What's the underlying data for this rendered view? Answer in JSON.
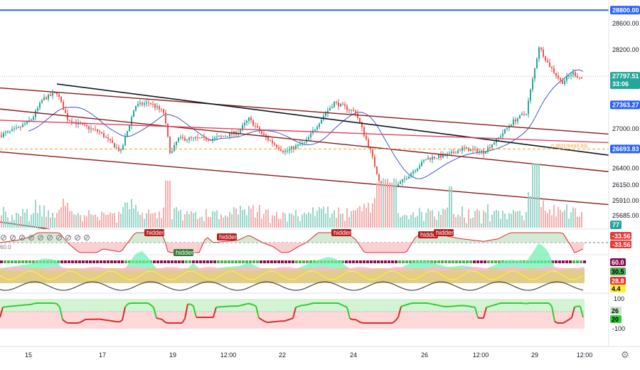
{
  "chart_data": {
    "type": "candlestick",
    "price_axis": {
      "ticks": [
        "28600.00",
        "28200.00",
        "27000.00",
        "26400.00",
        "26150.00",
        "25910.00",
        "25685.00"
      ],
      "ylim": [
        25500,
        28900
      ]
    },
    "date_axis": {
      "ticks": [
        "15",
        "17",
        "19",
        "12:00",
        "22",
        "24",
        "26",
        "12:00",
        "29",
        "12:00"
      ]
    },
    "price_tags": [
      {
        "name": "level-28800",
        "text": "28800.00",
        "price": 28800,
        "color": "#2962ff",
        "text_color": "#ffffff"
      },
      {
        "name": "last-price",
        "text": "27797.51",
        "subtext": "33:06",
        "price": 27797.51,
        "color": "#26a69a",
        "text_color": "#ffffff"
      },
      {
        "name": "channel-upper",
        "text": "27363.27",
        "price": 27363.27,
        "color": "#2962ff",
        "text_color": "#ffffff"
      },
      {
        "name": "fib-level",
        "text": "26693.83",
        "price": 26693.83,
        "color": "#2962ff",
        "text_color": "#ffffff"
      }
    ],
    "fib_label": "0.382(26693.83)",
    "volume_tag": "77",
    "osc1": {
      "tags": [
        "-33.56",
        "-33.56"
      ],
      "hidden_labels": [
        "hidden",
        "hidden",
        "hidden",
        "hidden",
        "hidden",
        "hidden"
      ]
    },
    "osc2": {
      "tags": [
        "60.0",
        "30.5",
        "28.8",
        "4.4"
      ],
      "left_label": "60.0"
    },
    "osc3": {
      "ticks": [
        "100",
        "-100"
      ],
      "tags": [
        "26",
        "20"
      ]
    },
    "lines": [
      {
        "name": "top-channel-line",
        "from": [
          0,
          27620
        ],
        "to": [
          856,
          26920
        ],
        "color": "#8b1a1a"
      },
      {
        "name": "channel-mid-line",
        "from": [
          0,
          27300
        ],
        "to": [
          856,
          26350
        ],
        "color": "#8b1a1a"
      },
      {
        "name": "channel-lower-line",
        "from": [
          0,
          26650
        ],
        "to": [
          856,
          25850
        ],
        "color": "#8b1a1a"
      },
      {
        "name": "black-trend-line",
        "from": [
          80,
          27680
        ],
        "to": [
          856,
          26600
        ],
        "color": "#131722"
      },
      {
        "name": "red-trend-line",
        "from": [
          0,
          27130
        ],
        "to": [
          856,
          26790
        ],
        "color": "#e04060"
      }
    ],
    "fib_dashed": 26693.83
  },
  "icons": {
    "gear": "gear-icon"
  }
}
